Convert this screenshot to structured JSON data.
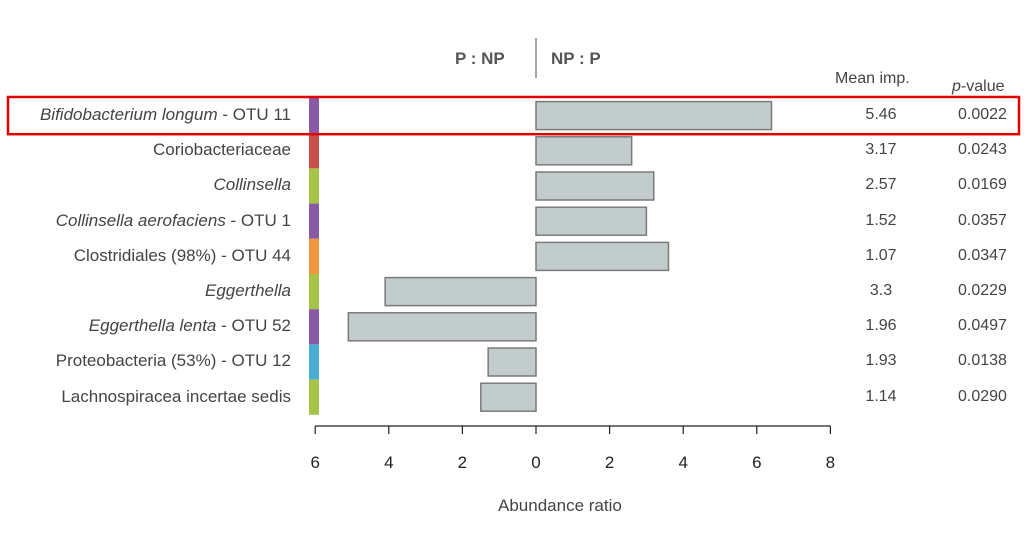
{
  "chart_data": {
    "type": "bar",
    "orientation": "horizontal",
    "xlabel": "Abundance ratio",
    "header_left": "P : NP",
    "header_right": "NP : P",
    "col_mean": "Mean imp.",
    "col_p_prefix": "p",
    "col_p_suffix": "-value",
    "x_ticks_left": [
      "6",
      "4",
      "2"
    ],
    "x_ticks_right": [
      "0",
      "2",
      "4",
      "6",
      "8"
    ],
    "xlim_left": [
      6,
      0
    ],
    "xlim_right": [
      0,
      8
    ],
    "highlight_row": 0,
    "highlight_color": "#e00000",
    "bar_color": "#c3cccc",
    "rows": [
      {
        "italic": "Bifidobacterium longum",
        "plain": " - OTU 11",
        "value": 6.4,
        "side": "NP:P",
        "color": "#8a5aa6",
        "mean_imp": "5.46",
        "p_value": "0.0022"
      },
      {
        "italic": "",
        "plain": "Coriobacteriaceae",
        "value": 2.6,
        "side": "NP:P",
        "color": "#c8504a",
        "mean_imp": "3.17",
        "p_value": "0.0243"
      },
      {
        "italic": "Collinsella",
        "plain": "",
        "value": 3.2,
        "side": "NP:P",
        "color": "#a6c44a",
        "mean_imp": "2.57",
        "p_value": "0.0169"
      },
      {
        "italic": "Collinsella aerofaciens",
        "plain": " - OTU 1",
        "value": 3.0,
        "side": "NP:P",
        "color": "#8a5aa6",
        "mean_imp": "1.52",
        "p_value": "0.0357"
      },
      {
        "italic": "",
        "plain": "Clostridiales (98%) - OTU 44",
        "value": 3.6,
        "side": "NP:P",
        "color": "#f0963c",
        "mean_imp": "1.07",
        "p_value": "0.0347"
      },
      {
        "italic": "Eggerthella",
        "plain": "",
        "value": 4.1,
        "side": "P:NP",
        "color": "#a6c44a",
        "mean_imp": "3.3",
        "p_value": "0.0229"
      },
      {
        "italic": "Eggerthella lenta",
        "plain": " - OTU 52",
        "value": 5.1,
        "side": "P:NP",
        "color": "#8a5aa6",
        "mean_imp": "1.96",
        "p_value": "0.0497"
      },
      {
        "italic": "",
        "plain": "Proteobacteria (53%) - OTU 12",
        "value": 1.3,
        "side": "P:NP",
        "color": "#4aaed0",
        "mean_imp": "1.93",
        "p_value": "0.0138"
      },
      {
        "italic": "",
        "plain": "Lachnospiracea incertae sedis",
        "value": 1.5,
        "side": "P:NP",
        "color": "#a6c44a",
        "mean_imp": "1.14",
        "p_value": "0.0290"
      }
    ]
  }
}
